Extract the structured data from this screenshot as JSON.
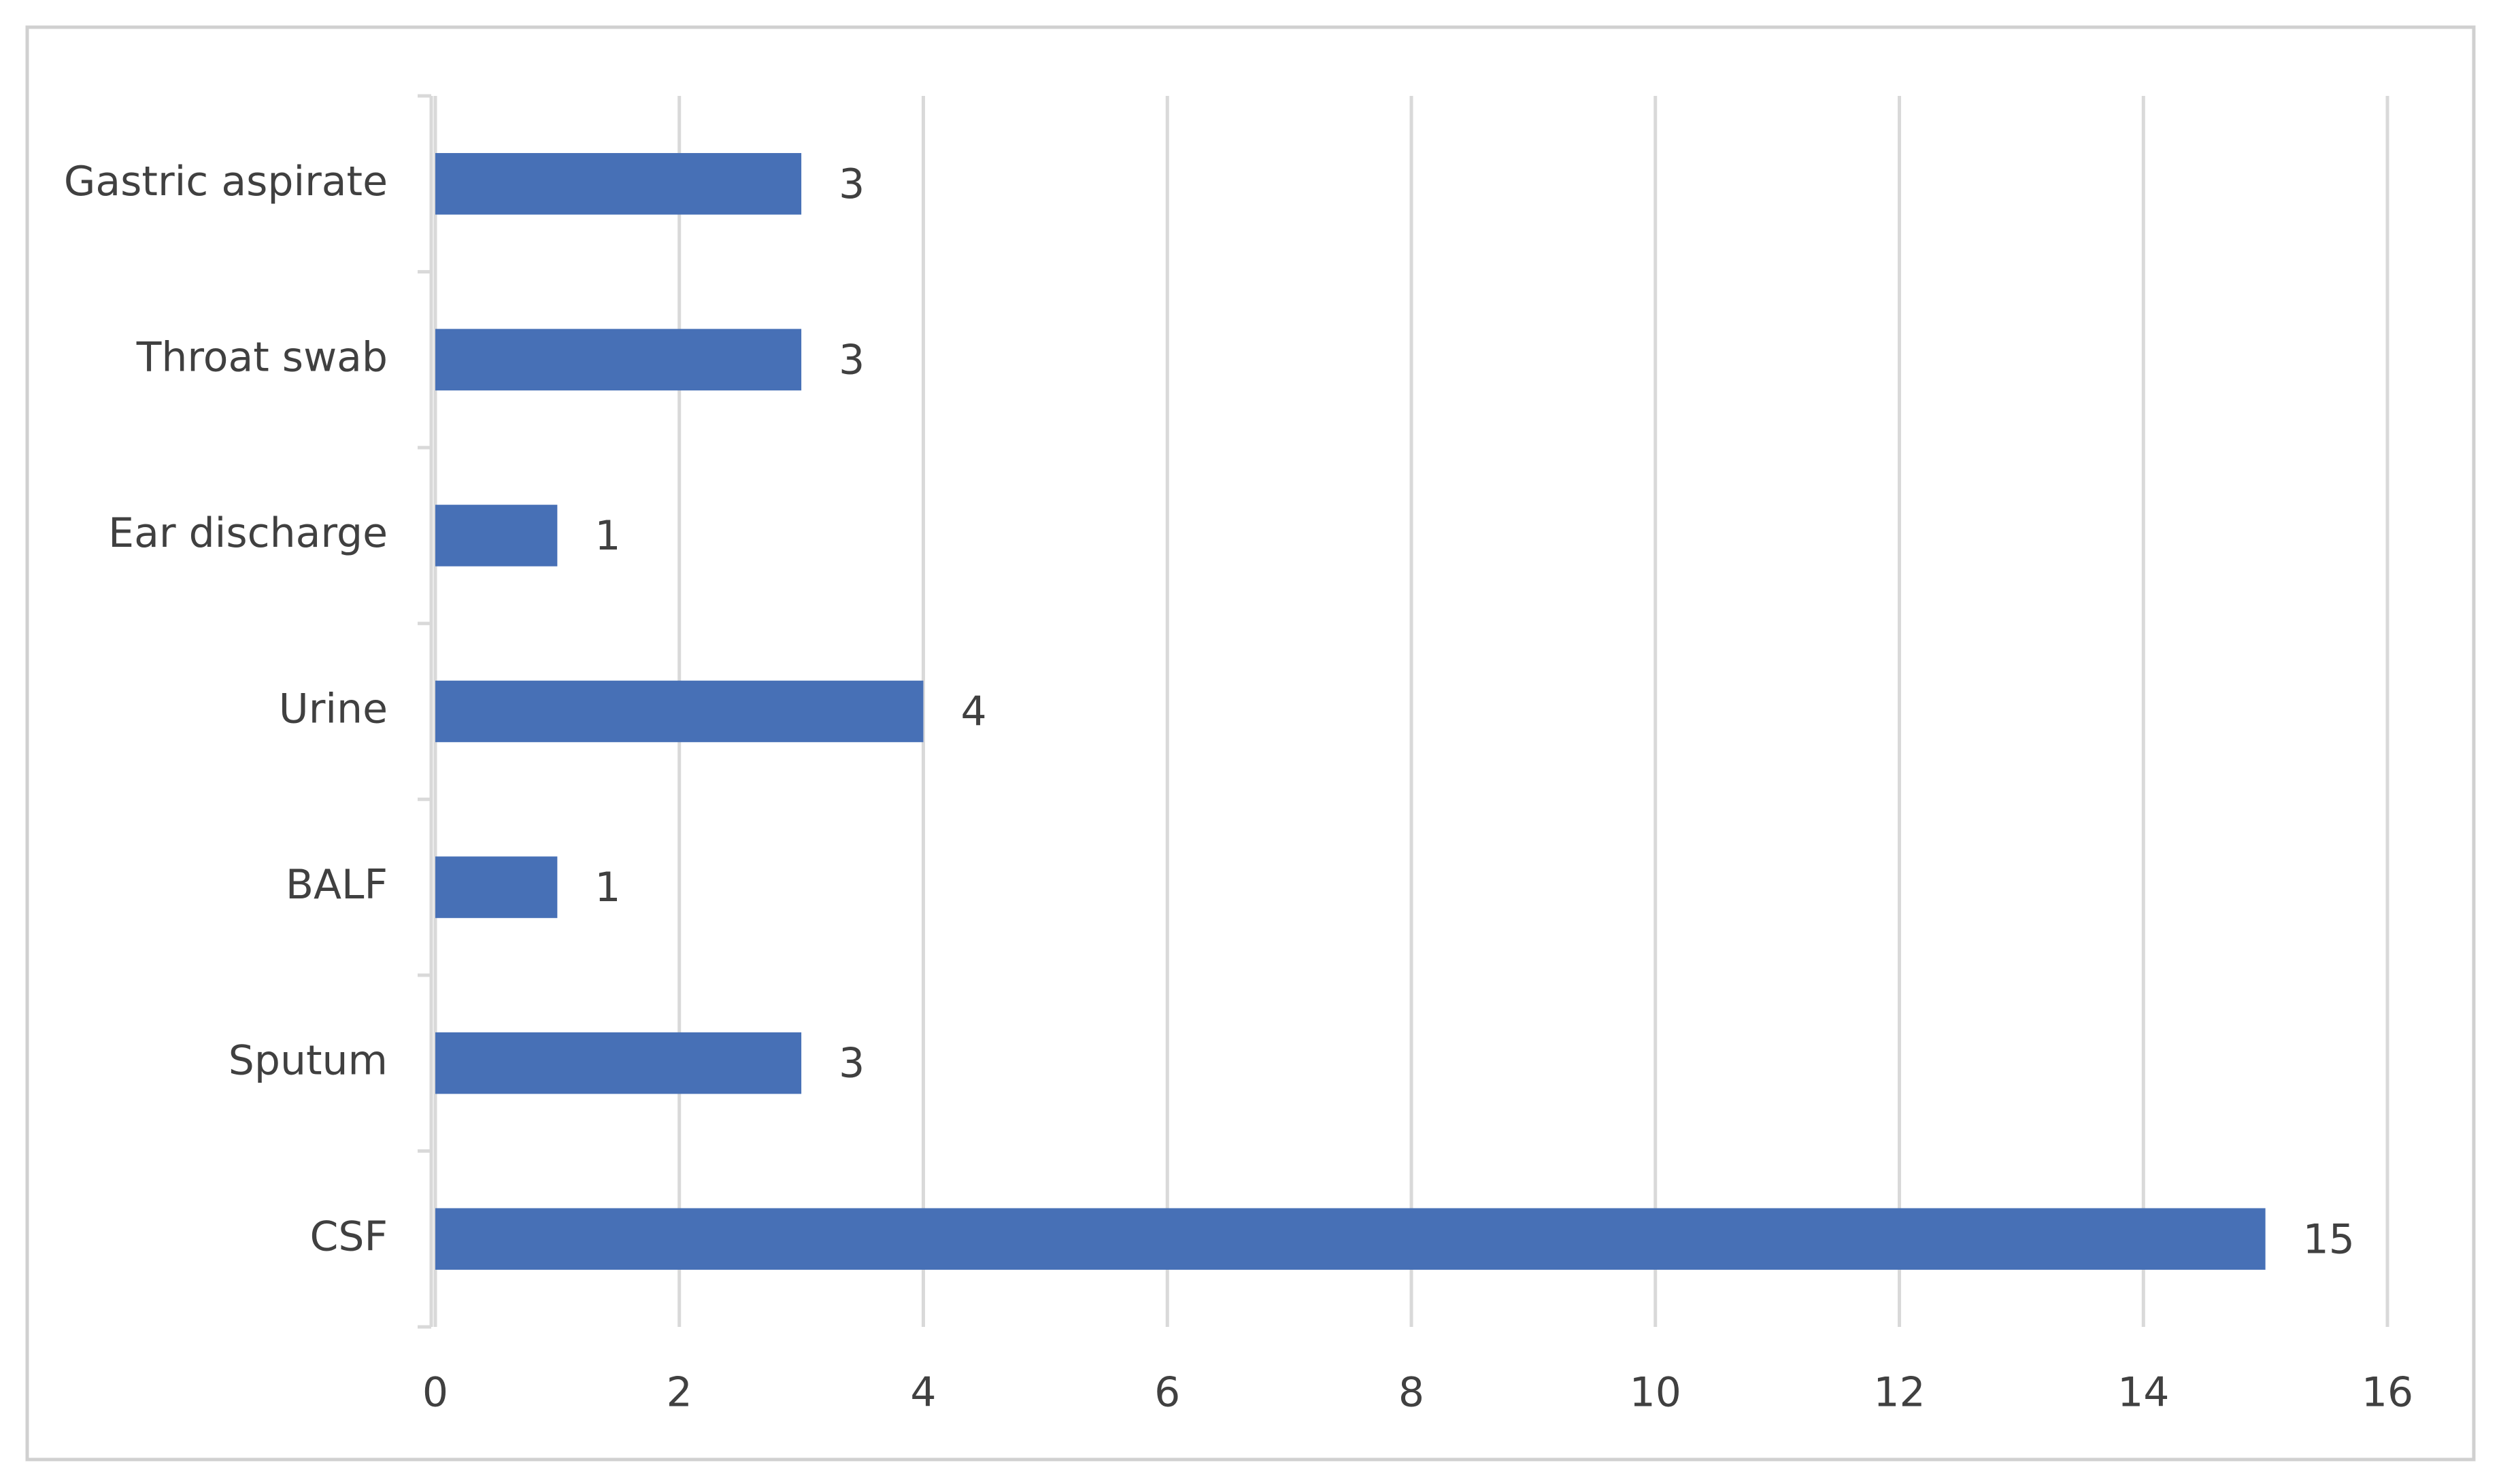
{
  "chart_data": {
    "type": "barh",
    "categories": [
      "CSF",
      "Sputum",
      "BALF",
      "Urine",
      "Ear discharge",
      "Throat swab",
      "Gastric aspirate"
    ],
    "values": [
      15,
      3,
      1,
      4,
      1,
      3,
      3
    ],
    "color": "#4770b6",
    "xlim": [
      0,
      16
    ],
    "xticks": [
      0,
      2,
      4,
      6,
      8,
      10,
      12,
      14,
      16
    ],
    "grid": true
  }
}
